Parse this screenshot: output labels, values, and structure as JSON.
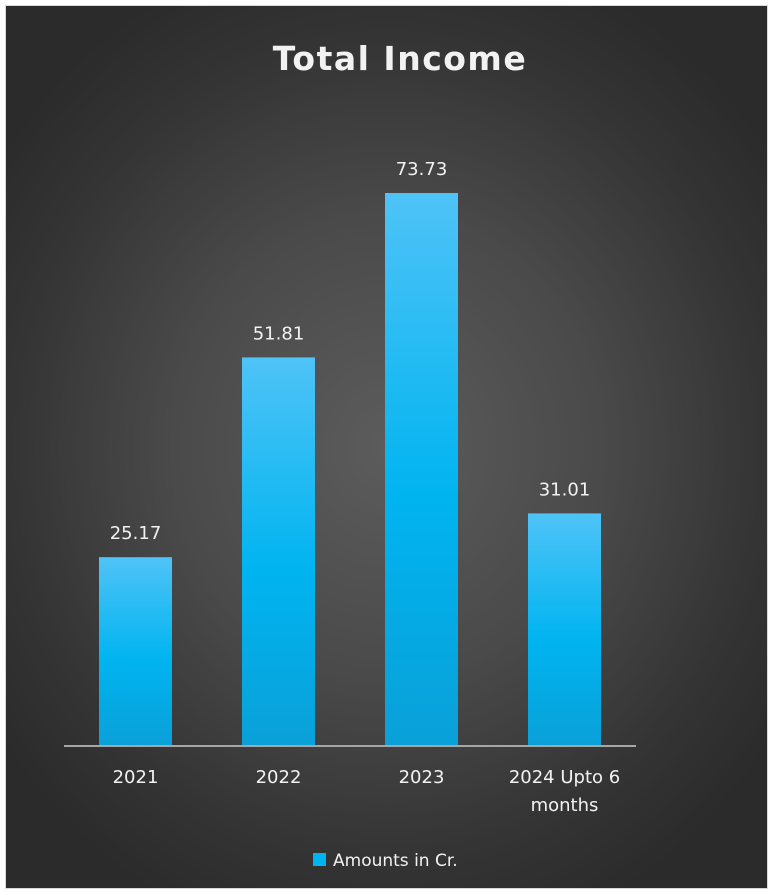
{
  "chart_data": {
    "type": "bar",
    "title": "Total Income",
    "categories": [
      "2021",
      "2022",
      "2023",
      "2024 Upto 6 months"
    ],
    "series": [
      {
        "name": "Amounts in Cr.",
        "values": [
          25.17,
          51.81,
          73.73,
          31.01
        ]
      }
    ],
    "data_labels": [
      "25.17",
      "51.81",
      "73.73",
      "31.01"
    ],
    "ylim": [
      0,
      80
    ],
    "grid": false,
    "y_axis_visible": false,
    "legend_position": "bottom",
    "colors": {
      "bar_top": "#4fc3f7",
      "bar_mid": "#00b4f0",
      "bar_bottom": "#0aa0d8",
      "background": "#3a3a3a",
      "axis": "#a6a6a6",
      "text": "#f2f2f2"
    }
  }
}
